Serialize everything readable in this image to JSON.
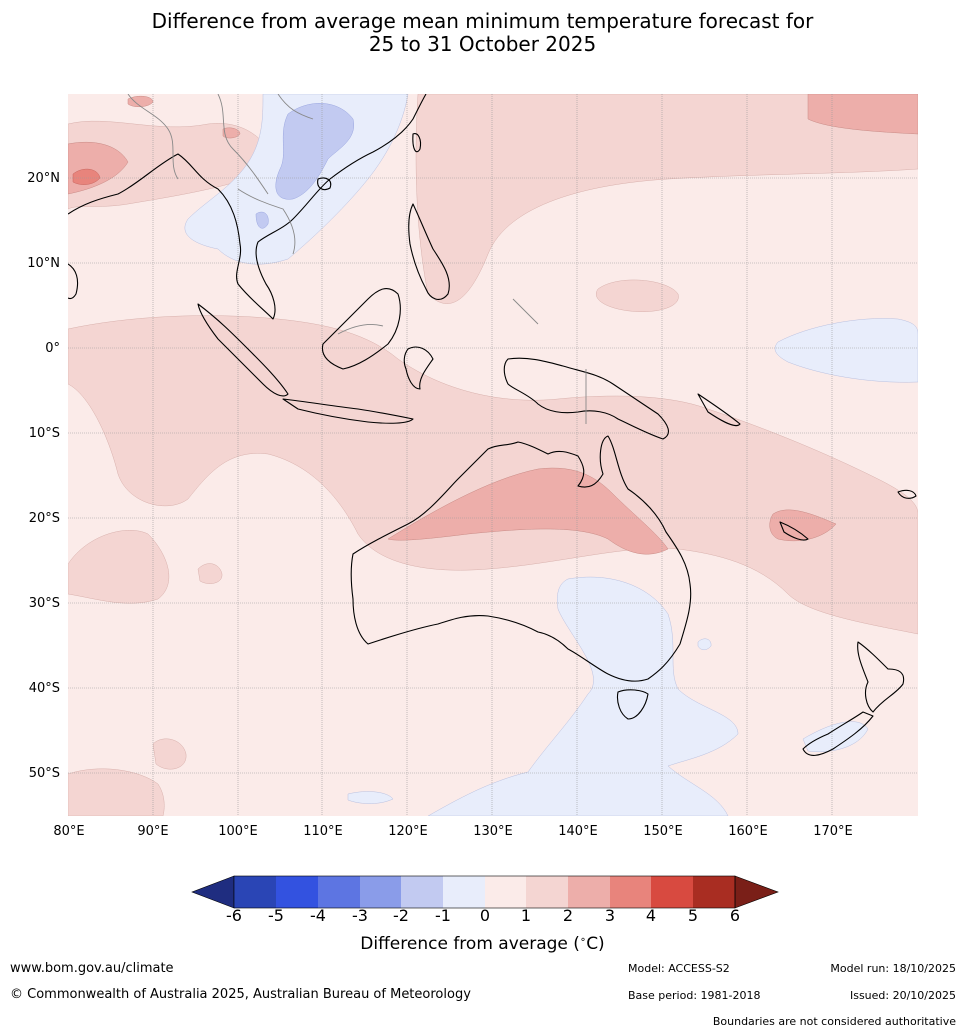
{
  "title": {
    "line1": "Difference from average mean minimum temperature forecast for",
    "line2": "25 to 31 October 2025"
  },
  "map": {
    "latitude_labels": [
      "20°N",
      "10°N",
      "0°",
      "10°S",
      "20°S",
      "30°S",
      "40°S",
      "50°S"
    ],
    "longitude_labels": [
      "80°E",
      "90°E",
      "100°E",
      "110°E",
      "120°E",
      "130°E",
      "140°E",
      "150°E",
      "160°E",
      "170°E"
    ],
    "colors": {
      "c_m6": "#1f2d80",
      "c_m5": "#2a45b5",
      "c_m4": "#3352e0",
      "c_m3": "#5d75e2",
      "c_m2": "#8a9ce9",
      "c_m1": "#c2caf1",
      "c_0": "#e8edfb",
      "c_1": "#fbebe9",
      "c_2": "#f4d5d2",
      "c_3": "#edaeaa",
      "c_4": "#e8847c",
      "c_5": "#d84a40",
      "c_6": "#a92d22"
    }
  },
  "colorbar": {
    "ticks": [
      "-6",
      "-5",
      "-4",
      "-3",
      "-2",
      "-1",
      "0",
      "1",
      "2",
      "3",
      "4",
      "5",
      "6"
    ],
    "label": "Difference from average (°C)",
    "label_prefix": "Difference from average (",
    "label_unit": "C)"
  },
  "footer": {
    "website": "www.bom.gov.au/climate",
    "copyright": "© Commonwealth of Australia 2025, Australian Bureau of Meteorology",
    "model": "Model: ACCESS-S2",
    "base_period": "Base period: 1981-2018",
    "model_run": "Model run: 18/10/2025",
    "issued": "Issued: 20/10/2025",
    "disclaimer": "Boundaries are not considered authoritative"
  }
}
